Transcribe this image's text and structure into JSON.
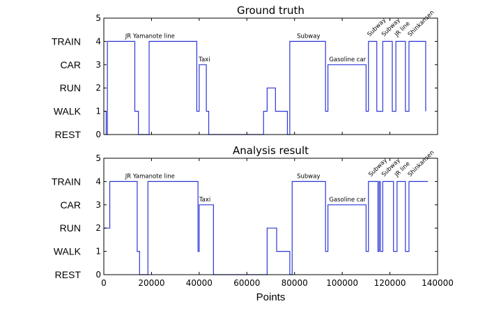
{
  "chart_data": [
    {
      "type": "line",
      "title": "Ground truth",
      "xlabel": "",
      "ylabel": "",
      "xlim": [
        0,
        140000
      ],
      "ylim": [
        0,
        5
      ],
      "x_ticks": [],
      "y_ticks": [
        0,
        1,
        2,
        3,
        4,
        5
      ],
      "state_labels": [
        "TRAIN",
        "CAR",
        "RUN",
        "WALK",
        "REST"
      ],
      "state_values": [
        4,
        3,
        2,
        1,
        0
      ],
      "grid": false,
      "series": [
        {
          "color": "#2b36d6",
          "steps": [
            [
              0,
              1
            ],
            [
              1000,
              1
            ],
            [
              1000,
              0
            ],
            [
              1500,
              0
            ],
            [
              1500,
              4
            ],
            [
              13000,
              4
            ],
            [
              13000,
              1
            ],
            [
              14500,
              1
            ],
            [
              14500,
              0
            ],
            [
              19000,
              0
            ],
            [
              19000,
              4
            ],
            [
              39000,
              4
            ],
            [
              39000,
              1
            ],
            [
              40000,
              1
            ],
            [
              40000,
              3
            ],
            [
              43000,
              3
            ],
            [
              43000,
              1
            ],
            [
              44000,
              1
            ],
            [
              44000,
              0
            ],
            [
              67000,
              0
            ],
            [
              67000,
              1
            ],
            [
              68500,
              1
            ],
            [
              68500,
              2
            ],
            [
              72000,
              2
            ],
            [
              72000,
              1
            ],
            [
              77000,
              1
            ],
            [
              77000,
              0
            ],
            [
              78000,
              0
            ],
            [
              78000,
              4
            ],
            [
              93000,
              4
            ],
            [
              93000,
              1
            ],
            [
              94000,
              1
            ],
            [
              94000,
              3
            ],
            [
              110000,
              3
            ],
            [
              110000,
              1
            ],
            [
              111000,
              1
            ],
            [
              111000,
              4
            ],
            [
              114500,
              4
            ],
            [
              114500,
              1
            ],
            [
              117000,
              1
            ],
            [
              117000,
              4
            ],
            [
              121000,
              4
            ],
            [
              121000,
              1
            ],
            [
              122500,
              1
            ],
            [
              122500,
              4
            ],
            [
              126500,
              4
            ],
            [
              126500,
              1
            ],
            [
              128000,
              1
            ],
            [
              128000,
              4
            ],
            [
              135000,
              4
            ],
            [
              135000,
              1
            ]
          ]
        }
      ],
      "annotations": [
        {
          "text": "JR Yamanote line",
          "x": 9000,
          "y": 4.15,
          "rotation": 0
        },
        {
          "text": "Taxi",
          "x": 39800,
          "y": 3.15,
          "rotation": 0
        },
        {
          "text": "Subway",
          "x": 81000,
          "y": 4.15,
          "rotation": 0
        },
        {
          "text": "Gasoline car",
          "x": 94500,
          "y": 3.15,
          "rotation": 0
        },
        {
          "text": "Subway",
          "x": 111500,
          "y": 4.2,
          "rotation": -45
        },
        {
          "text": "Subway",
          "x": 117500,
          "y": 4.2,
          "rotation": -45
        },
        {
          "text": "JR line",
          "x": 123000,
          "y": 4.2,
          "rotation": -45
        },
        {
          "text": "Shinkansen",
          "x": 128500,
          "y": 4.2,
          "rotation": -45
        }
      ]
    },
    {
      "type": "line",
      "title": "Analysis result",
      "xlabel": "Points",
      "ylabel": "",
      "xlim": [
        0,
        140000
      ],
      "ylim": [
        0,
        5
      ],
      "x_ticks": [
        0,
        20000,
        40000,
        60000,
        80000,
        100000,
        120000,
        140000
      ],
      "y_ticks": [
        0,
        1,
        2,
        3,
        4,
        5
      ],
      "state_labels": [
        "TRAIN",
        "CAR",
        "RUN",
        "WALK",
        "REST"
      ],
      "state_values": [
        4,
        3,
        2,
        1,
        0
      ],
      "grid": false,
      "series": [
        {
          "color": "#2b36d6",
          "steps": [
            [
              0,
              2
            ],
            [
              2500,
              2
            ],
            [
              2500,
              4
            ],
            [
              14000,
              4
            ],
            [
              14000,
              1
            ],
            [
              15000,
              1
            ],
            [
              15000,
              0
            ],
            [
              18500,
              0
            ],
            [
              18500,
              4
            ],
            [
              39500,
              4
            ],
            [
              39500,
              1
            ],
            [
              40000,
              1
            ],
            [
              40000,
              3
            ],
            [
              46000,
              3
            ],
            [
              46000,
              0
            ],
            [
              68500,
              0
            ],
            [
              68500,
              2
            ],
            [
              72500,
              2
            ],
            [
              72500,
              1
            ],
            [
              78000,
              1
            ],
            [
              78000,
              0
            ],
            [
              79000,
              0
            ],
            [
              79000,
              4
            ],
            [
              93000,
              4
            ],
            [
              93000,
              1
            ],
            [
              94000,
              1
            ],
            [
              94000,
              3
            ],
            [
              110000,
              3
            ],
            [
              110000,
              1
            ],
            [
              111000,
              1
            ],
            [
              111000,
              4
            ],
            [
              115000,
              4
            ],
            [
              115000,
              1
            ],
            [
              115500,
              1
            ],
            [
              115500,
              4
            ],
            [
              116000,
              4
            ],
            [
              116000,
              1
            ],
            [
              117000,
              1
            ],
            [
              117000,
              4
            ],
            [
              121500,
              4
            ],
            [
              121500,
              1
            ],
            [
              123000,
              1
            ],
            [
              123000,
              4
            ],
            [
              126500,
              4
            ],
            [
              126500,
              1
            ],
            [
              128000,
              1
            ],
            [
              128000,
              4
            ],
            [
              136000,
              4
            ]
          ]
        }
      ],
      "annotations": [
        {
          "text": "JR Yamanote line",
          "x": 9000,
          "y": 4.15,
          "rotation": 0
        },
        {
          "text": "Taxi",
          "x": 40000,
          "y": 3.15,
          "rotation": 0
        },
        {
          "text": "Subway",
          "x": 81000,
          "y": 4.15,
          "rotation": 0
        },
        {
          "text": "Gasoline car",
          "x": 94500,
          "y": 3.15,
          "rotation": 0
        },
        {
          "text": "Subway",
          "x": 112000,
          "y": 4.2,
          "rotation": -45
        },
        {
          "text": "Subway",
          "x": 117500,
          "y": 4.2,
          "rotation": -45
        },
        {
          "text": "JR line",
          "x": 123000,
          "y": 4.2,
          "rotation": -45
        },
        {
          "text": "Shinkansen",
          "x": 128500,
          "y": 4.2,
          "rotation": -45
        }
      ]
    }
  ]
}
